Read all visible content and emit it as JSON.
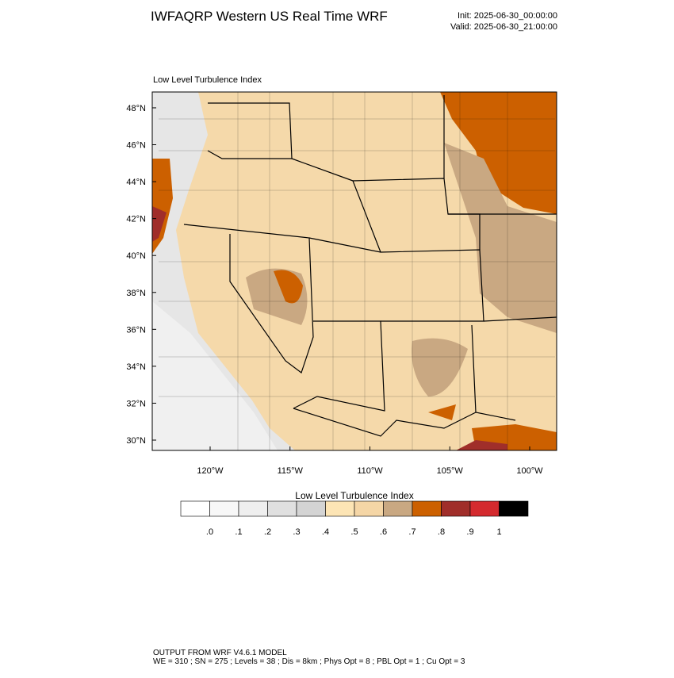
{
  "header": {
    "title": "IWFAQRP Western US Real Time WRF",
    "init": "Init: 2025-06-30_00:00:00",
    "valid": "Valid: 2025-06-30_21:00:00"
  },
  "map": {
    "title": "Low Level Turbulence Index",
    "lat_ticks": [
      {
        "value": 48,
        "label": "48°N"
      },
      {
        "value": 46,
        "label": "46°N"
      },
      {
        "value": 44,
        "label": "44°N"
      },
      {
        "value": 42,
        "label": "42°N"
      },
      {
        "value": 40,
        "label": "40°N"
      },
      {
        "value": 38,
        "label": "38°N"
      },
      {
        "value": 36,
        "label": "36°N"
      },
      {
        "value": 34,
        "label": "34°N"
      },
      {
        "value": 32,
        "label": "32°N"
      },
      {
        "value": 30,
        "label": "30°N"
      }
    ],
    "lon_ticks": [
      {
        "value": -120,
        "label": "120°W"
      },
      {
        "value": -115,
        "label": "115°W"
      },
      {
        "value": -110,
        "label": "110°W"
      },
      {
        "value": -105,
        "label": "105°W"
      },
      {
        "value": -100,
        "label": "100°W"
      }
    ]
  },
  "colorbar": {
    "title": "Low Level Turbulence Index",
    "colors": [
      "#ffffff",
      "#f7f7f7",
      "#efefef",
      "#e0e0e0",
      "#d4d4d4",
      "#fde5b5",
      "#f5d6a6",
      "#c9a882",
      "#cc6000",
      "#a02e2a",
      "#d42a2e",
      "#000000"
    ],
    "ticks": [
      {
        "value": 0,
        "label": ".0"
      },
      {
        "value": 0.1,
        "label": ".1"
      },
      {
        "value": 0.2,
        "label": ".2"
      },
      {
        "value": 0.3,
        "label": ".3"
      },
      {
        "value": 0.4,
        "label": ".4"
      },
      {
        "value": 0.5,
        "label": ".5"
      },
      {
        "value": 0.6,
        "label": ".6"
      },
      {
        "value": 0.7,
        "label": ".7"
      },
      {
        "value": 0.8,
        "label": ".8"
      },
      {
        "value": 0.9,
        "label": ".9"
      },
      1
    ]
  },
  "footer": {
    "line1": "OUTPUT FROM WRF V4.6.1 MODEL",
    "line2": "WE = 310 ; SN = 275 ; Levels = 38 ; Dis = 8km ; Phys Opt = 8 ; PBL Opt = 1 ; Cu Opt = 3"
  }
}
